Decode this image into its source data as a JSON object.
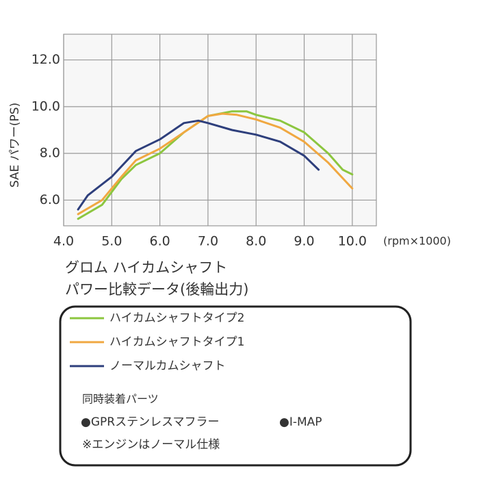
{
  "chart_data": {
    "type": "line",
    "y_label": "SAE パワー(PS)",
    "x_unit": "(rpm×1000)",
    "title": [
      "グロム ハイカムシャフト",
      "パワー比較データ(後輪出力)"
    ],
    "xlim": [
      4.0,
      10.5
    ],
    "ylim": [
      4.9,
      13.1
    ],
    "xticks": [
      {
        "value": 4,
        "label": "4.0"
      },
      {
        "value": 5,
        "label": "5.0"
      },
      {
        "value": 6,
        "label": "6.0"
      },
      {
        "value": 7,
        "label": "7.0"
      },
      {
        "value": 8,
        "label": "8.0"
      },
      {
        "value": 9,
        "label": "9.0"
      },
      {
        "value": 10,
        "label": "10.0"
      }
    ],
    "yticks": [
      {
        "value": 6,
        "label": "6.0"
      },
      {
        "value": 8,
        "label": "8.0"
      },
      {
        "value": 10,
        "label": "10.0"
      },
      {
        "value": 12,
        "label": "12.0"
      }
    ],
    "grid": true,
    "series": [
      {
        "name": "ハイカムシャフトタイプ2",
        "color": "#8cc63f",
        "x": [
          4.3,
          4.8,
          5.2,
          5.5,
          6.0,
          6.5,
          7.0,
          7.5,
          7.8,
          8.0,
          8.5,
          9.0,
          9.5,
          9.8,
          10.0
        ],
        "values": [
          5.2,
          5.8,
          6.9,
          7.5,
          8.0,
          8.9,
          9.6,
          9.8,
          9.8,
          9.65,
          9.4,
          8.9,
          8.0,
          7.3,
          7.1
        ]
      },
      {
        "name": "ハイカムシャフトタイプ1",
        "color": "#f0a841",
        "x": [
          4.3,
          4.8,
          5.2,
          5.5,
          6.0,
          6.5,
          7.0,
          7.3,
          7.6,
          8.0,
          8.5,
          9.0,
          9.5,
          10.0
        ],
        "values": [
          5.4,
          6.0,
          7.0,
          7.7,
          8.2,
          8.9,
          9.6,
          9.7,
          9.65,
          9.45,
          9.1,
          8.5,
          7.6,
          6.5
        ]
      },
      {
        "name": "ノーマルカムシャフト",
        "color": "#2e3f7c",
        "x": [
          4.3,
          4.5,
          5.0,
          5.5,
          6.0,
          6.5,
          6.8,
          7.0,
          7.5,
          8.0,
          8.5,
          9.0,
          9.3
        ],
        "values": [
          5.6,
          6.2,
          7.0,
          8.1,
          8.6,
          9.3,
          9.4,
          9.3,
          9.0,
          8.8,
          8.5,
          7.9,
          7.3
        ]
      }
    ],
    "notes": [
      "同時装着パーツ",
      "●GPRステンレスマフラー",
      "●I-MAP",
      "※エンジンはノーマル仕様"
    ]
  }
}
